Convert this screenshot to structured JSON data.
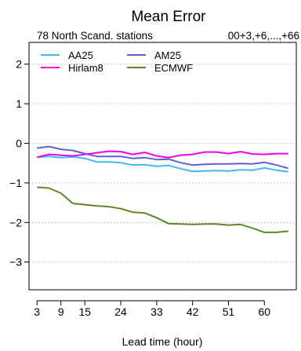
{
  "chart_data": {
    "type": "line",
    "title": "Mean Error",
    "subtitle_left": "78 North Scand. stations",
    "subtitle_right": "00+3,+6,...,+66",
    "xlabel": "Lead time (hour)",
    "ylabel": "",
    "xlim": [
      1,
      68
    ],
    "ylim": [
      -3.7,
      2.55
    ],
    "xticks": [
      3,
      9,
      15,
      24,
      33,
      42,
      51,
      60
    ],
    "yticks": [
      -3,
      -2,
      -1,
      0,
      1,
      2
    ],
    "ytick_labels": [
      "−3",
      "−2",
      "−1",
      "0",
      "1",
      "2"
    ],
    "grid": true,
    "legend_position": "top-left",
    "x": [
      3,
      6,
      9,
      12,
      15,
      18,
      21,
      24,
      27,
      30,
      33,
      36,
      39,
      42,
      45,
      48,
      51,
      54,
      57,
      60,
      63,
      66
    ],
    "series": [
      {
        "name": "AA25",
        "color": "#40b8f0",
        "values": [
          -0.35,
          -0.33,
          -0.36,
          -0.34,
          -0.38,
          -0.47,
          -0.47,
          -0.49,
          -0.55,
          -0.54,
          -0.58,
          -0.56,
          -0.64,
          -0.71,
          -0.7,
          -0.69,
          -0.7,
          -0.67,
          -0.68,
          -0.62,
          -0.68,
          -0.72
        ]
      },
      {
        "name": "AM25",
        "color": "#6060d0",
        "values": [
          -0.12,
          -0.08,
          -0.15,
          -0.18,
          -0.26,
          -0.33,
          -0.33,
          -0.33,
          -0.38,
          -0.36,
          -0.41,
          -0.4,
          -0.49,
          -0.55,
          -0.53,
          -0.52,
          -0.52,
          -0.51,
          -0.52,
          -0.48,
          -0.55,
          -0.63
        ]
      },
      {
        "name": "Hirlam8",
        "color": "#f000f0",
        "values": [
          -0.35,
          -0.28,
          -0.3,
          -0.32,
          -0.28,
          -0.24,
          -0.2,
          -0.21,
          -0.28,
          -0.23,
          -0.32,
          -0.36,
          -0.3,
          -0.28,
          -0.22,
          -0.22,
          -0.26,
          -0.21,
          -0.27,
          -0.28,
          -0.26,
          -0.26
        ]
      },
      {
        "name": "ECMWF",
        "color": "#5a8a20",
        "values": [
          -1.11,
          -1.13,
          -1.26,
          -1.52,
          -1.55,
          -1.58,
          -1.6,
          -1.65,
          -1.74,
          -1.76,
          -1.88,
          -2.03,
          -2.04,
          -2.05,
          -2.04,
          -2.04,
          -2.07,
          -2.05,
          -2.14,
          -2.25,
          -2.25,
          -2.22
        ]
      }
    ]
  }
}
